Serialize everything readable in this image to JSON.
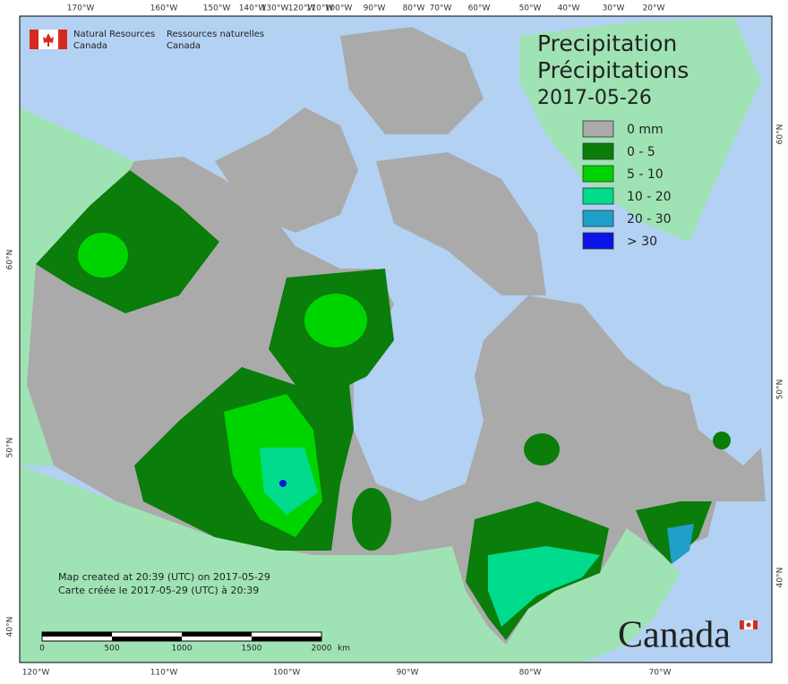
{
  "header": {
    "agency_en": "Natural Resources",
    "agency_en2": "Canada",
    "agency_fr": "Ressources naturelles",
    "agency_fr2": "Canada"
  },
  "title": {
    "en": "Precipitation",
    "fr": "Précipitations",
    "date": "2017-05-26"
  },
  "legend": [
    {
      "label": "0 mm",
      "color": "#aaaaaa"
    },
    {
      "label": "0 - 5",
      "color": "#0a7d0a"
    },
    {
      "label": "5 - 10",
      "color": "#00d400"
    },
    {
      "label": "10 - 20",
      "color": "#00dc8c"
    },
    {
      "label": "20 - 30",
      "color": "#1ea0c8"
    },
    {
      "label": "> 30",
      "color": "#0a14e6"
    }
  ],
  "graticule": {
    "top": [
      "170°W",
      "160°W",
      "150°W",
      "140°W",
      "130°W",
      "120°W",
      "110°W",
      "100°W",
      "90°W",
      "80°W",
      "70°W",
      "60°W",
      "50°W",
      "40°W",
      "30°W",
      "20°W"
    ],
    "bottom": [
      "120°W",
      "110°W",
      "100°W",
      "90°W",
      "80°W",
      "70°W"
    ],
    "left": [
      "60°N",
      "50°N",
      "40°N"
    ],
    "right": [
      "60°N",
      "50°N",
      "40°N"
    ]
  },
  "credits": [
    "Map created at 20:39 (UTC) on 2017-05-29",
    "Carte créée le 2017-05-29 (UTC) à 20:39"
  ],
  "scale_bar": {
    "labels": [
      "0",
      "500",
      "1000",
      "1500",
      "2000"
    ],
    "unit": "km"
  },
  "wordmark": "Canada"
}
